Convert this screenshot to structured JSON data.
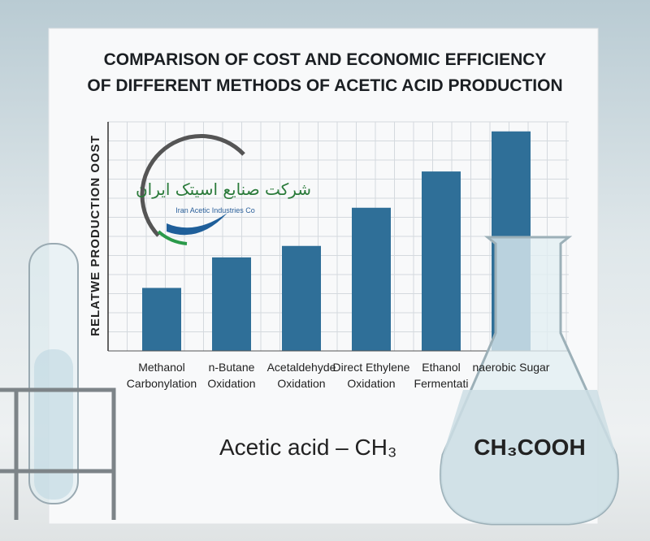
{
  "chart_data": {
    "type": "bar",
    "title": "COMPARISON OF COST AND ECONOMIC EFFICIENCY OF DIFFERENT METHODS OF ACETIC ACID PRODUCTION",
    "y_label": "RELATWE PRODUCTION OOST",
    "categories": [
      "Methanol Carbonylation",
      "n-Butane Oxidation",
      "Acetaldehyde Oxidation",
      "Direct Ethylene Oxidation",
      "Ethanol Fermentati",
      "naerobic Sugar"
    ],
    "values": [
      3.3,
      4.9,
      5.5,
      7.5,
      9.4,
      11.5
    ],
    "color": "#2f6f98",
    "ylim": [
      0,
      12
    ],
    "grid": true,
    "logo": {
      "name": "شرکت صنایع اسیتک ایران",
      "subtitle": "Iran Acetic Industries Co"
    },
    "caption": "Acetic acid – CH₃",
    "flask_label": "CH₃COOH"
  }
}
